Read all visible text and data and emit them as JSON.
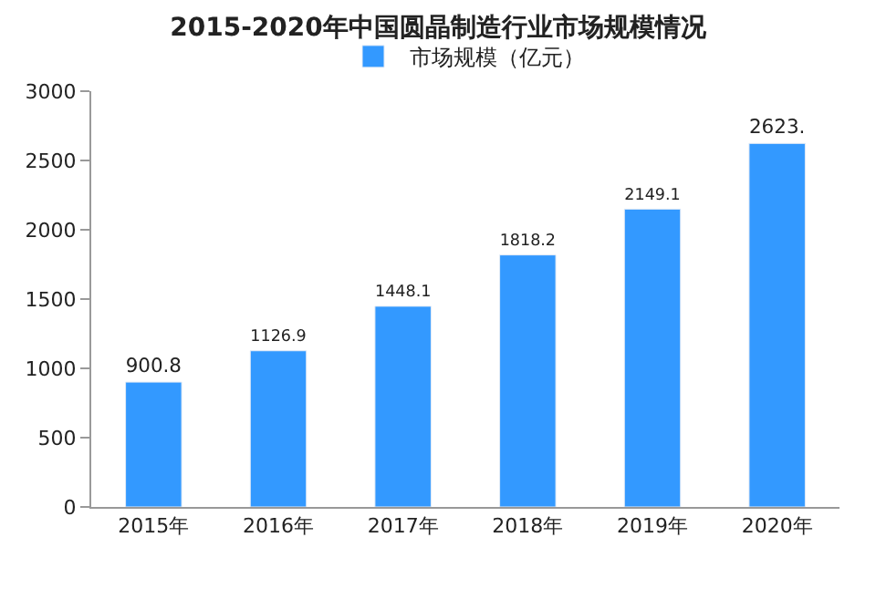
{
  "chart_data": {
    "type": "bar",
    "title": "2015-2020年中国圆晶制造行业市场规模情况",
    "categories": [
      "2015年",
      "2016年",
      "2017年",
      "2018年",
      "2019年",
      "2020年"
    ],
    "series": [
      {
        "name": "市场规模（亿元）",
        "color": "#3399ff",
        "values": [
          900.8,
          1126.9,
          1448.1,
          1818.2,
          2149.1,
          2623
        ],
        "value_labels": [
          "900.8",
          "1126.9",
          "1448.1",
          "1818.2",
          "2149.1",
          "2623."
        ]
      }
    ],
    "ylim": [
      0,
      3000
    ],
    "yticks": [
      0,
      500,
      1000,
      1500,
      2000,
      2500,
      3000
    ],
    "legend": "top"
  }
}
